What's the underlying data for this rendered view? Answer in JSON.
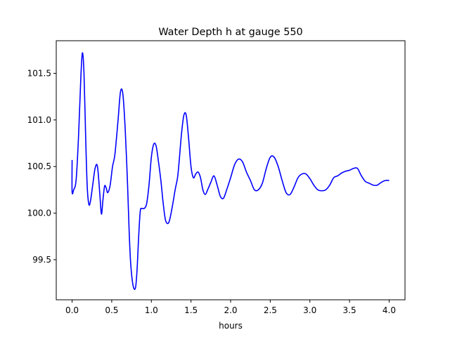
{
  "chart_data": {
    "type": "line",
    "title": "Water Depth h at gauge 550",
    "xlabel": "hours",
    "ylabel": "",
    "xlim": [
      -0.2,
      4.2
    ],
    "ylim": [
      99.07,
      101.85
    ],
    "grid": false,
    "legend": "none",
    "xticks": [
      0.0,
      0.5,
      1.0,
      1.5,
      2.0,
      2.5,
      3.0,
      3.5,
      4.0
    ],
    "xtick_labels": [
      "0.0",
      "0.5",
      "1.0",
      "1.5",
      "2.0",
      "2.5",
      "3.0",
      "3.5",
      "4.0"
    ],
    "yticks": [
      99.5,
      100.0,
      100.5,
      101.0,
      101.5
    ],
    "ytick_labels": [
      "99.5",
      "100.0",
      "100.5",
      "101.0",
      "101.5"
    ],
    "series": [
      {
        "color": "#0000ff",
        "x": [
          0.0,
          0.0,
          0.02,
          0.05,
          0.08,
          0.11,
          0.13,
          0.15,
          0.17,
          0.19,
          0.21,
          0.23,
          0.26,
          0.29,
          0.32,
          0.35,
          0.37,
          0.39,
          0.41,
          0.43,
          0.45,
          0.48,
          0.51,
          0.54,
          0.58,
          0.61,
          0.64,
          0.67,
          0.7,
          0.72,
          0.74,
          0.77,
          0.8,
          0.82,
          0.84,
          0.86,
          0.88,
          0.91,
          0.94,
          0.97,
          1.0,
          1.03,
          1.06,
          1.09,
          1.12,
          1.15,
          1.18,
          1.22,
          1.26,
          1.3,
          1.33,
          1.35,
          1.38,
          1.41,
          1.44,
          1.47,
          1.5,
          1.53,
          1.56,
          1.59,
          1.62,
          1.65,
          1.68,
          1.71,
          1.75,
          1.79,
          1.83,
          1.87,
          1.91,
          1.95,
          2.0,
          2.05,
          2.1,
          2.15,
          2.2,
          2.25,
          2.3,
          2.35,
          2.4,
          2.45,
          2.5,
          2.55,
          2.6,
          2.65,
          2.7,
          2.75,
          2.8,
          2.85,
          2.9,
          2.95,
          3.0,
          3.05,
          3.1,
          3.15,
          3.2,
          3.25,
          3.3,
          3.35,
          3.4,
          3.45,
          3.5,
          3.55,
          3.6,
          3.65,
          3.7,
          3.75,
          3.8,
          3.85,
          3.9,
          3.95,
          4.0
        ],
        "y": [
          100.57,
          100.23,
          100.25,
          100.35,
          100.8,
          101.45,
          101.72,
          101.5,
          100.85,
          100.3,
          100.1,
          100.12,
          100.3,
          100.48,
          100.5,
          100.2,
          99.99,
          100.15,
          100.29,
          100.27,
          100.22,
          100.3,
          100.5,
          100.63,
          101.0,
          101.3,
          101.28,
          100.9,
          100.3,
          99.8,
          99.45,
          99.22,
          99.2,
          99.4,
          99.75,
          100.02,
          100.05,
          100.05,
          100.1,
          100.3,
          100.6,
          100.74,
          100.72,
          100.55,
          100.35,
          100.1,
          99.92,
          99.9,
          100.05,
          100.25,
          100.38,
          100.55,
          100.85,
          101.05,
          101.05,
          100.8,
          100.5,
          100.38,
          100.42,
          100.44,
          100.38,
          100.25,
          100.2,
          100.25,
          100.33,
          100.4,
          100.3,
          100.18,
          100.16,
          100.25,
          100.38,
          100.52,
          100.58,
          100.55,
          100.44,
          100.35,
          100.25,
          100.25,
          100.32,
          100.48,
          100.6,
          100.6,
          100.5,
          100.35,
          100.22,
          100.2,
          100.28,
          100.38,
          100.42,
          100.42,
          100.37,
          100.3,
          100.25,
          100.24,
          100.25,
          100.3,
          100.38,
          100.4,
          100.43,
          100.45,
          100.46,
          100.48,
          100.48,
          100.4,
          100.34,
          100.32,
          100.3,
          100.3,
          100.33,
          100.35,
          100.35
        ]
      }
    ]
  }
}
